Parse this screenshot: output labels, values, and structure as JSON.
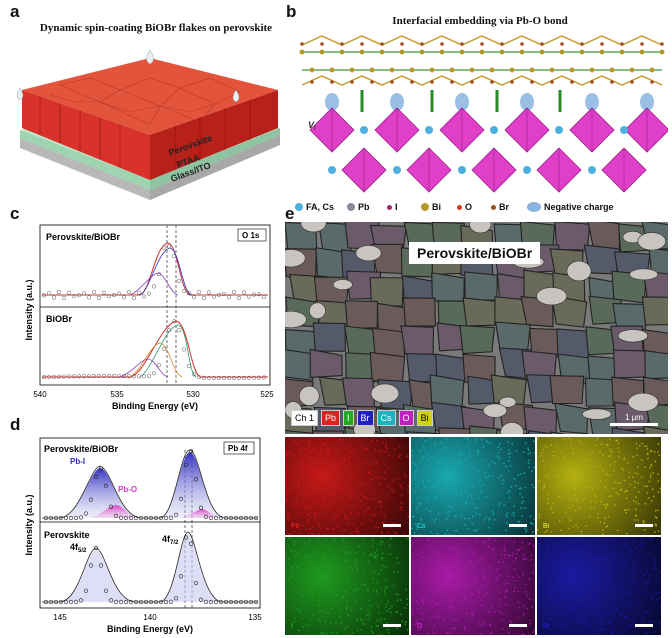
{
  "panels": {
    "a": {
      "label": "a",
      "title": "Dynamic spin-coating BiOBr flakes on perovskite",
      "layers": [
        "Perovskite",
        "PTAA",
        "Glass/ITO"
      ],
      "colors": {
        "perovskite": "#d8322a",
        "ptaa": "#9fd4b0",
        "glass": "#c9c9c9"
      }
    },
    "b": {
      "label": "b",
      "title": "Interfacial embedding via Pb-O bond",
      "vacancy_label": "V",
      "vacancy_sub": "I",
      "legend": [
        {
          "name": "FA, Cs",
          "color": "#4fb0e0"
        },
        {
          "name": "Pb",
          "color": "#8a8a9a"
        },
        {
          "name": "I",
          "color": "#a02a6a"
        },
        {
          "name": "Bi",
          "color": "#b59a2a"
        },
        {
          "name": "O",
          "color": "#d04020"
        },
        {
          "name": "Br",
          "color": "#a05020"
        },
        {
          "name": "Negative charge",
          "color": "#8ab4e0"
        }
      ]
    },
    "c": {
      "label": "c",
      "top_sample": "Perovskite/BiOBr",
      "bottom_sample": "BiOBr",
      "orbital": "O 1s",
      "ylabel": "Intensity (a.u.)",
      "xlabel": "Binding Energy (eV)",
      "xticks": [
        "540",
        "535",
        "530",
        "525"
      ]
    },
    "d": {
      "label": "d",
      "top_sample": "Perovskite/BiOBr",
      "bottom_sample": "Perovskite",
      "orbital": "Pb 4f",
      "peak_pbi": "Pb-I",
      "peak_pbo": "Pb-O",
      "peak_52": "4f",
      "peak_52_sub": "5/2",
      "peak_72": "4f",
      "peak_72_sub": "7/2",
      "ylabel": "Intensity (a.u.)",
      "xlabel": "Binding Energy (eV)",
      "xticks": [
        "145",
        "140",
        "135"
      ]
    },
    "e": {
      "label": "e",
      "sem_title": "Perovskite/BiOBr",
      "scale": "1 μm",
      "channel": "Ch 1",
      "elements": [
        {
          "name": "Pb",
          "color": "#e02020"
        },
        {
          "name": "I",
          "color": "#22aa22"
        },
        {
          "name": "Br",
          "color": "#2020c0"
        },
        {
          "name": "Cs",
          "color": "#20b0c0"
        },
        {
          "name": "O",
          "color": "#c020c0"
        },
        {
          "name": "Bi",
          "color": "#d0d020"
        }
      ],
      "maps": [
        {
          "name": "Pb",
          "color": "#c61818"
        },
        {
          "name": "Cs",
          "color": "#19a8b0"
        },
        {
          "name": "Bi",
          "color": "#b4b010"
        },
        {
          "name": "I",
          "color": "#1e9a1e"
        },
        {
          "name": "O",
          "color": "#a81aa8"
        },
        {
          "name": "Br",
          "color": "#1a1aa0"
        }
      ]
    }
  }
}
